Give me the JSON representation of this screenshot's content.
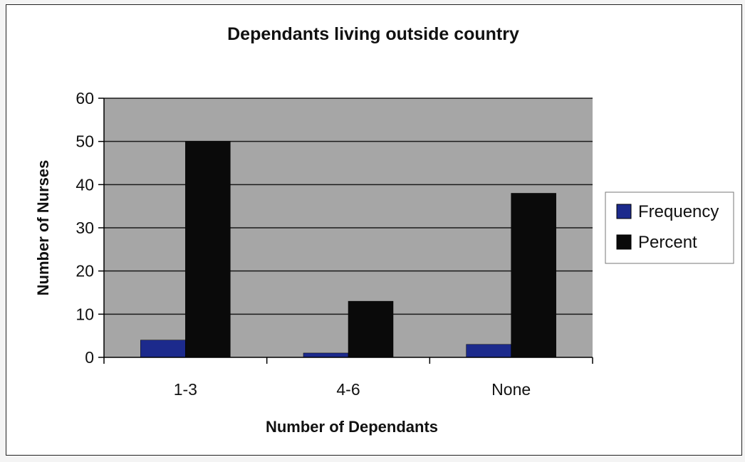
{
  "chart_data": {
    "type": "bar",
    "title": "Dependants living outside country",
    "xlabel": "Number of Dependants",
    "ylabel": "Number of Nurses",
    "categories": [
      "1-3",
      "4-6",
      "None"
    ],
    "series": [
      {
        "name": "Frequency",
        "values": [
          4,
          1,
          3
        ]
      },
      {
        "name": "Percent",
        "values": [
          50,
          13,
          38
        ]
      }
    ],
    "ylim": [
      0,
      60
    ],
    "yticks": [
      "0",
      "10",
      "20",
      "30",
      "40",
      "50",
      "60"
    ],
    "grid": true,
    "legend": "right"
  },
  "colors": {
    "plot_area": "#a6a6a6",
    "gridline": "#1a1a1a",
    "frequency": "#1c2a8c",
    "percent": "#0a0a0a"
  }
}
